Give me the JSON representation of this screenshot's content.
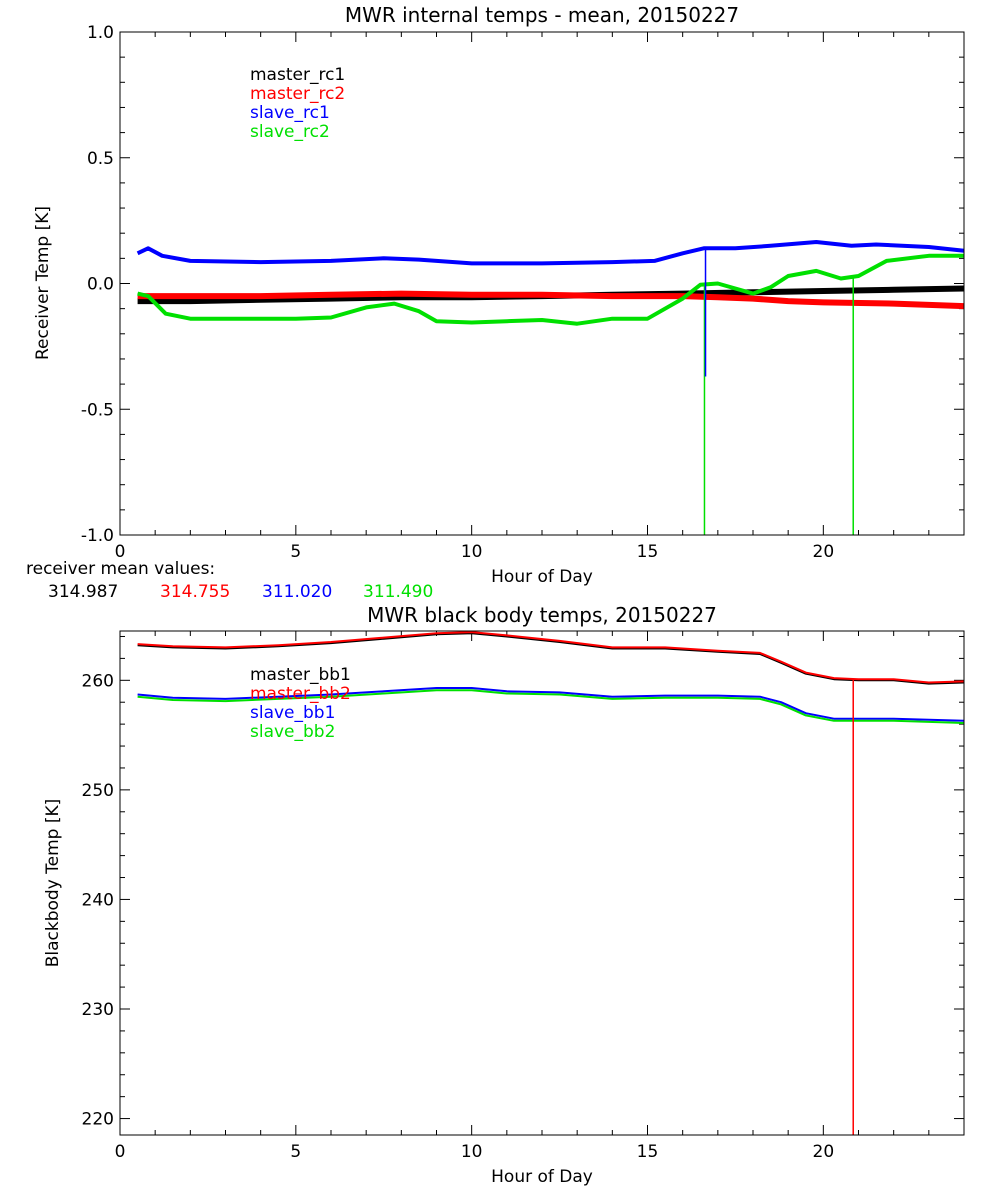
{
  "colors": {
    "master_rc1": "#000000",
    "master_rc2": "#ff0000",
    "slave_rc1": "#0000ff",
    "slave_rc2": "#00e000",
    "master_bb1": "#000000",
    "master_bb2": "#ff0000",
    "slave_bb1": "#0000ff",
    "slave_bb2": "#00e000"
  },
  "chart_data": [
    {
      "type": "line",
      "title": "MWR internal temps - mean, 20150227",
      "xlabel": "Hour of Day",
      "ylabel": "Receiver Temp [K]",
      "xlim": [
        0,
        24
      ],
      "ylim": [
        -1.0,
        1.0
      ],
      "xticks": [
        "0",
        "5",
        "10",
        "15",
        "20"
      ],
      "yticks": [
        "-1.0",
        "-0.5",
        "0.0",
        "0.5",
        "1.0"
      ],
      "legend": [
        "master_rc1",
        "master_rc2",
        "slave_rc1",
        "slave_rc2"
      ],
      "legend_position": "top-left",
      "series": [
        {
          "name": "master_rc1",
          "x": [
            0.5,
            2,
            4,
            6,
            8,
            10,
            12,
            14,
            16,
            18,
            20,
            22,
            24
          ],
          "y": [
            -0.07,
            -0.07,
            -0.065,
            -0.06,
            -0.055,
            -0.055,
            -0.05,
            -0.045,
            -0.04,
            -0.035,
            -0.03,
            -0.025,
            -0.02
          ]
        },
        {
          "name": "master_rc2",
          "x": [
            0.5,
            2,
            4,
            6,
            8,
            10,
            12,
            14,
            16,
            17,
            18,
            19,
            20,
            22,
            24
          ],
          "y": [
            -0.05,
            -0.05,
            -0.05,
            -0.045,
            -0.04,
            -0.045,
            -0.045,
            -0.05,
            -0.05,
            -0.055,
            -0.06,
            -0.07,
            -0.075,
            -0.08,
            -0.09
          ]
        },
        {
          "name": "slave_rc1",
          "x": [
            0.5,
            0.8,
            1.2,
            2,
            4,
            6,
            7.5,
            8.5,
            10,
            12,
            14,
            15.2,
            16,
            16.6,
            17.5,
            18.5,
            19.8,
            20.8,
            21.5,
            23,
            24
          ],
          "y": [
            0.12,
            0.14,
            0.11,
            0.09,
            0.085,
            0.09,
            0.1,
            0.095,
            0.08,
            0.08,
            0.085,
            0.09,
            0.12,
            0.14,
            0.14,
            0.15,
            0.165,
            0.15,
            0.155,
            0.145,
            0.13
          ]
        },
        {
          "name": "slave_rc2",
          "x": [
            0.5,
            0.8,
            1.3,
            2,
            4,
            5,
            6,
            7,
            7.8,
            8.5,
            9,
            10,
            11,
            12,
            13,
            14,
            15,
            16,
            16.5,
            17,
            17.5,
            18,
            18.5,
            19,
            19.8,
            20.5,
            21,
            21.8,
            23,
            24
          ],
          "y": [
            -0.04,
            -0.05,
            -0.12,
            -0.14,
            -0.14,
            -0.14,
            -0.135,
            -0.095,
            -0.08,
            -0.11,
            -0.15,
            -0.155,
            -0.15,
            -0.145,
            -0.16,
            -0.14,
            -0.14,
            -0.06,
            -0.005,
            0.0,
            -0.02,
            -0.04,
            -0.015,
            0.03,
            0.05,
            0.02,
            0.03,
            0.09,
            0.11,
            0.11
          ]
        }
      ],
      "spikes": [
        {
          "series": "slave_rc2",
          "x": 16.62,
          "y": -1.0
        },
        {
          "series": "slave_rc2",
          "x": 20.85,
          "y": -1.0
        },
        {
          "series": "slave_rc1",
          "x": 16.65,
          "y": -0.37
        }
      ],
      "mean_values_label": "receiver mean values:",
      "mean_values": [
        {
          "series": "master_rc1",
          "value": "314.987"
        },
        {
          "series": "master_rc2",
          "value": "314.755"
        },
        {
          "series": "slave_rc1",
          "value": "311.020"
        },
        {
          "series": "slave_rc2",
          "value": "311.490"
        }
      ]
    },
    {
      "type": "line",
      "title": "MWR black body temps, 20150227",
      "xlabel": "Hour of Day",
      "ylabel": "Blackbody Temp [K]",
      "xlim": [
        0,
        24
      ],
      "ylim": [
        218.5,
        264.5
      ],
      "xticks": [
        "0",
        "5",
        "10",
        "15",
        "20"
      ],
      "yticks": [
        "220",
        "230",
        "240",
        "250",
        "260"
      ],
      "legend": [
        "master_bb1",
        "master_bb2",
        "slave_bb1",
        "slave_bb2"
      ],
      "legend_position": "top-left",
      "series": [
        {
          "name": "master_bb1",
          "x": [
            0.5,
            1.5,
            3,
            4.5,
            6,
            7.5,
            9,
            10,
            11,
            12.5,
            14,
            15.5,
            17,
            18.2,
            18.8,
            19.5,
            20.3,
            21,
            22,
            23,
            24
          ],
          "y": [
            263.2,
            263.0,
            262.9,
            263.1,
            263.4,
            263.8,
            264.2,
            264.3,
            264.0,
            263.5,
            262.9,
            262.9,
            262.6,
            262.4,
            261.6,
            260.6,
            260.1,
            260.0,
            260.0,
            259.7,
            259.8
          ]
        },
        {
          "name": "master_bb2",
          "x": [
            0.5,
            1.5,
            3,
            4.5,
            6,
            7.5,
            9,
            10,
            11,
            12.5,
            14,
            15.5,
            17,
            18.2,
            18.8,
            19.5,
            20.3,
            21,
            22,
            23,
            24
          ],
          "y": [
            263.3,
            263.1,
            263.0,
            263.2,
            263.5,
            263.9,
            264.3,
            264.4,
            264.1,
            263.6,
            263.0,
            263.0,
            262.7,
            262.5,
            261.7,
            260.7,
            260.2,
            260.1,
            260.1,
            259.8,
            259.9
          ]
        },
        {
          "name": "slave_bb1",
          "x": [
            0.5,
            1.5,
            3,
            4.5,
            6,
            7.5,
            9,
            10,
            11,
            12.5,
            14,
            15.5,
            17,
            18.2,
            18.8,
            19.5,
            20.3,
            21,
            22,
            23,
            24
          ],
          "y": [
            258.7,
            258.4,
            258.3,
            258.5,
            258.7,
            259.0,
            259.3,
            259.3,
            259.0,
            258.9,
            258.5,
            258.6,
            258.6,
            258.5,
            258.0,
            257.0,
            256.5,
            256.5,
            256.5,
            256.4,
            256.3
          ]
        },
        {
          "name": "slave_bb2",
          "x": [
            0.5,
            1.5,
            3,
            4.5,
            6,
            7.5,
            9,
            10,
            11,
            12.5,
            14,
            15.5,
            17,
            18.2,
            18.8,
            19.5,
            20.3,
            21,
            22,
            23,
            24
          ],
          "y": [
            258.5,
            258.2,
            258.1,
            258.3,
            258.5,
            258.8,
            259.1,
            259.1,
            258.8,
            258.7,
            258.3,
            258.4,
            258.4,
            258.3,
            257.8,
            256.8,
            256.3,
            256.3,
            256.3,
            256.2,
            256.1
          ]
        }
      ],
      "spikes": [
        {
          "series": "master_bb2",
          "x": 20.85,
          "y": 218.5
        }
      ]
    }
  ]
}
